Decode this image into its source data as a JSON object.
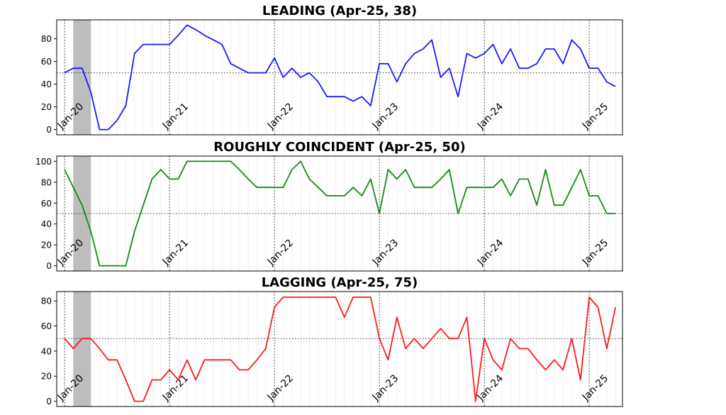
{
  "chart_data": {
    "type": "line",
    "x": [
      "Jan-20",
      "Feb-20",
      "Mar-20",
      "Apr-20",
      "May-20",
      "Jun-20",
      "Jul-20",
      "Aug-20",
      "Sep-20",
      "Oct-20",
      "Nov-20",
      "Dec-20",
      "Jan-21",
      "Feb-21",
      "Mar-21",
      "Apr-21",
      "May-21",
      "Jun-21",
      "Jul-21",
      "Aug-21",
      "Sep-21",
      "Oct-21",
      "Nov-21",
      "Dec-21",
      "Jan-22",
      "Feb-22",
      "Mar-22",
      "Apr-22",
      "May-22",
      "Jun-22",
      "Jul-22",
      "Aug-22",
      "Sep-22",
      "Oct-22",
      "Nov-22",
      "Dec-22",
      "Jan-23",
      "Feb-23",
      "Mar-23",
      "Apr-23",
      "May-23",
      "Jun-23",
      "Jul-23",
      "Aug-23",
      "Sep-23",
      "Oct-23",
      "Nov-23",
      "Dec-23",
      "Jan-24",
      "Feb-24",
      "Mar-24",
      "Apr-24",
      "May-24",
      "Jun-24",
      "Jul-24",
      "Aug-24",
      "Sep-24",
      "Oct-24",
      "Nov-24",
      "Dec-24",
      "Jan-25",
      "Feb-25",
      "Mar-25",
      "Apr-25"
    ],
    "xtick_labels": [
      "Jan-20",
      "Jan-21",
      "Jan-22",
      "Jan-23",
      "Jan-24",
      "Jan-25"
    ],
    "shaded_period": [
      "Feb-20",
      "Apr-20"
    ],
    "shade_color": "#bdbdbd",
    "reference_line": 50,
    "grid": "dotted major at Jan, light minor monthly",
    "panels": [
      {
        "title": "LEADING (Apr-25, 38)",
        "color": "#1a1aff",
        "yticks": [
          0,
          20,
          40,
          60,
          80
        ],
        "ylim": [
          -4.6,
          96.6
        ],
        "values": [
          50,
          54,
          54,
          33,
          0,
          0,
          8,
          21,
          67,
          75,
          75,
          75,
          75,
          83,
          92,
          88,
          83,
          79,
          75,
          58,
          54,
          50,
          50,
          50,
          63,
          46,
          54,
          46,
          50,
          42,
          29,
          29,
          29,
          25,
          29,
          21,
          58,
          58,
          42,
          58,
          67,
          71,
          79,
          46,
          54,
          29,
          67,
          63,
          67,
          75,
          58,
          71,
          54,
          54,
          58,
          71,
          71,
          58,
          79,
          71,
          54,
          54,
          42,
          38
        ]
      },
      {
        "title": "ROUGHLY COINCIDENT (Apr-25, 50)",
        "color": "#138a13",
        "yticks": [
          0,
          20,
          40,
          60,
          80,
          100
        ],
        "ylim": [
          -5,
          105
        ],
        "values": [
          92,
          75,
          58,
          33,
          0,
          0,
          0,
          0,
          33,
          58,
          83,
          92,
          83,
          83,
          100,
          100,
          100,
          100,
          100,
          100,
          92,
          83,
          75,
          75,
          75,
          75,
          92,
          100,
          83,
          75,
          67,
          67,
          67,
          75,
          67,
          83,
          50,
          92,
          83,
          92,
          75,
          75,
          75,
          83,
          92,
          50,
          75,
          75,
          75,
          75,
          83,
          67,
          83,
          83,
          58,
          92,
          58,
          58,
          75,
          92,
          67,
          67,
          50,
          50
        ]
      },
      {
        "title": "LAGGING (Apr-25, 75)",
        "color": "#ff1a1a",
        "yticks": [
          0,
          20,
          40,
          60,
          80
        ],
        "ylim": [
          -4.2,
          87.5
        ],
        "values": [
          50,
          42,
          50,
          50,
          42,
          33,
          33,
          17,
          0,
          0,
          17,
          17,
          25,
          17,
          33,
          17,
          33,
          33,
          33,
          33,
          25,
          25,
          33,
          42,
          75,
          83,
          83,
          83,
          83,
          83,
          83,
          83,
          67,
          83,
          83,
          83,
          50,
          33,
          67,
          42,
          50,
          42,
          50,
          58,
          50,
          50,
          67,
          0,
          50,
          33,
          25,
          50,
          42,
          42,
          33,
          25,
          33,
          25,
          50,
          17,
          83,
          75,
          42,
          75
        ]
      }
    ]
  }
}
